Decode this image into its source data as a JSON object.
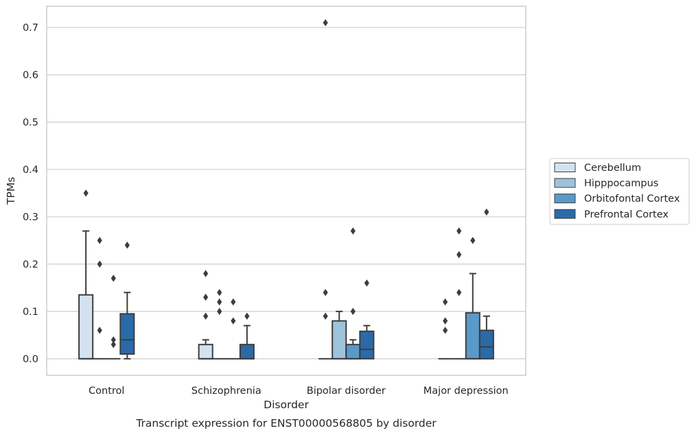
{
  "chart_data": {
    "type": "box",
    "xlabel": "Disorder",
    "ylabel": "TPMs",
    "caption": "Transcript expression for ENST00000568805 by disorder",
    "ylim": [
      -0.035,
      0.745
    ],
    "yticks": [
      "0.0",
      "0.1",
      "0.2",
      "0.3",
      "0.4",
      "0.5",
      "0.6",
      "0.7"
    ],
    "grid": "horizontal",
    "legend_position": "right",
    "categories": [
      "Control",
      "Schizophrenia",
      "Bipolar disorder",
      "Major depression"
    ],
    "series": [
      {
        "name": "Cerebellum",
        "color": "#d4e2f0",
        "boxes": [
          {
            "q1": 0.0,
            "median": 0.0,
            "q3": 0.135,
            "whisker_low": 0.0,
            "whisker_high": 0.27,
            "outliers": [
              0.35
            ]
          },
          {
            "q1": 0.0,
            "median": 0.0,
            "q3": 0.03,
            "whisker_low": 0.0,
            "whisker_high": 0.04,
            "outliers": [
              0.09,
              0.13,
              0.18
            ]
          },
          {
            "q1": 0.0,
            "median": 0.0,
            "q3": 0.0,
            "whisker_low": 0.0,
            "whisker_high": 0.0,
            "outliers": [
              0.09,
              0.14,
              0.71
            ]
          },
          {
            "q1": 0.0,
            "median": 0.0,
            "q3": 0.0,
            "whisker_low": 0.0,
            "whisker_high": 0.0,
            "outliers": [
              0.06,
              0.08,
              0.12
            ]
          }
        ]
      },
      {
        "name": "Hipppocampus",
        "color": "#9dc3dc",
        "boxes": [
          {
            "q1": 0.0,
            "median": 0.0,
            "q3": 0.0,
            "whisker_low": 0.0,
            "whisker_high": 0.0,
            "outliers": [
              0.06,
              0.2,
              0.25
            ]
          },
          {
            "q1": 0.0,
            "median": 0.0,
            "q3": 0.0,
            "whisker_low": 0.0,
            "whisker_high": 0.0,
            "outliers": [
              0.1,
              0.12,
              0.14
            ]
          },
          {
            "q1": 0.0,
            "median": 0.0,
            "q3": 0.08,
            "whisker_low": 0.0,
            "whisker_high": 0.1,
            "outliers": []
          },
          {
            "q1": 0.0,
            "median": 0.0,
            "q3": 0.0,
            "whisker_low": 0.0,
            "whisker_high": 0.0,
            "outliers": [
              0.14,
              0.22,
              0.27
            ]
          }
        ]
      },
      {
        "name": "Orbitofontal Cortex",
        "color": "#5a9ac8",
        "boxes": [
          {
            "q1": 0.0,
            "median": 0.0,
            "q3": 0.0,
            "whisker_low": 0.0,
            "whisker_high": 0.0,
            "outliers": [
              0.03,
              0.04,
              0.17
            ]
          },
          {
            "q1": 0.0,
            "median": 0.0,
            "q3": 0.0,
            "whisker_low": 0.0,
            "whisker_high": 0.0,
            "outliers": [
              0.08,
              0.12
            ]
          },
          {
            "q1": 0.0,
            "median": 0.0,
            "q3": 0.03,
            "whisker_low": 0.0,
            "whisker_high": 0.04,
            "outliers": [
              0.1,
              0.27
            ]
          },
          {
            "q1": 0.0,
            "median": 0.0,
            "q3": 0.097,
            "whisker_low": 0.0,
            "whisker_high": 0.18,
            "outliers": [
              0.25
            ]
          }
        ]
      },
      {
        "name": "Prefrontal Cortex",
        "color": "#2b6aa8",
        "boxes": [
          {
            "q1": 0.01,
            "median": 0.04,
            "q3": 0.095,
            "whisker_low": 0.0,
            "whisker_high": 0.14,
            "outliers": [
              0.24
            ]
          },
          {
            "q1": 0.0,
            "median": 0.0,
            "q3": 0.03,
            "whisker_low": 0.0,
            "whisker_high": 0.07,
            "outliers": [
              0.09
            ]
          },
          {
            "q1": 0.0,
            "median": 0.02,
            "q3": 0.058,
            "whisker_low": 0.0,
            "whisker_high": 0.07,
            "outliers": [
              0.16
            ]
          },
          {
            "q1": 0.0,
            "median": 0.025,
            "q3": 0.06,
            "whisker_low": 0.0,
            "whisker_high": 0.09,
            "outliers": [
              0.31
            ]
          }
        ]
      }
    ]
  }
}
